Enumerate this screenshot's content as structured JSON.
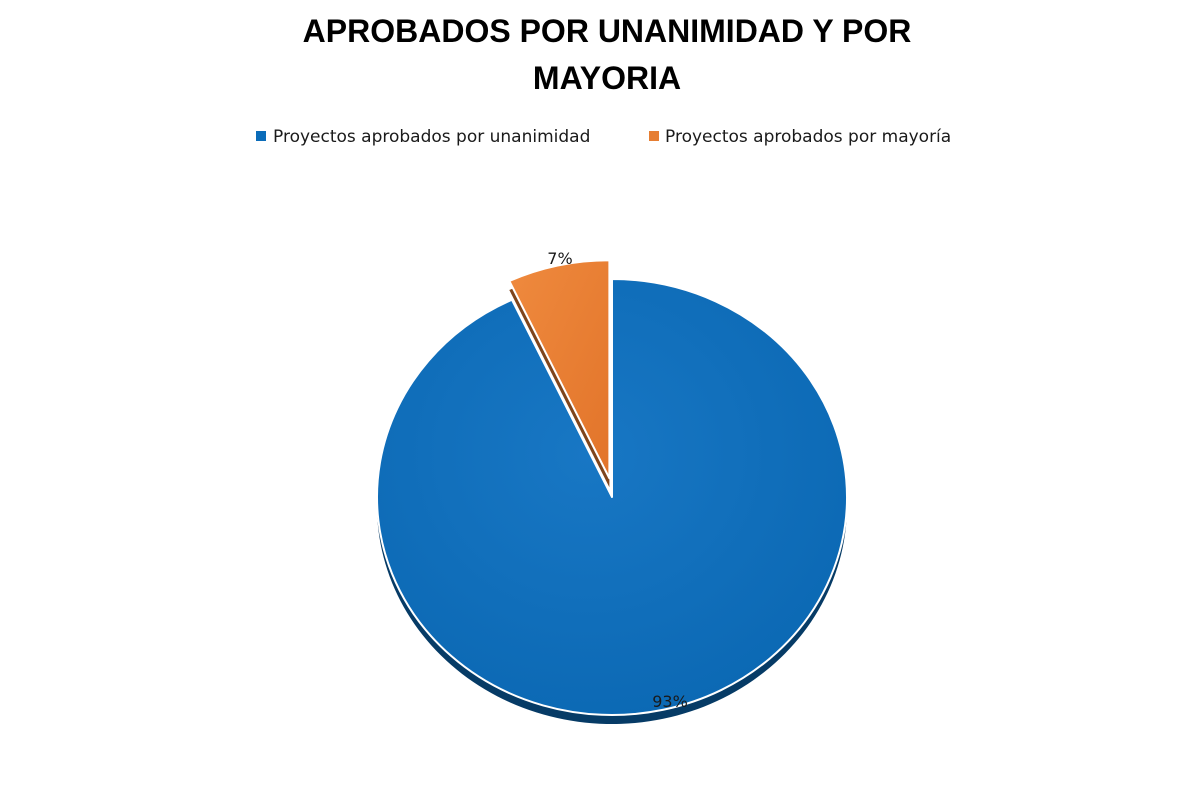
{
  "chart_data": {
    "type": "pie",
    "title_lines": [
      "APROBADOS POR UNANIMIDAD Y POR",
      "MAYORIA"
    ],
    "legend_position": "top",
    "slices": [
      {
        "label": "Proyectos aprobados por unanimidad",
        "value": 93,
        "value_label": "93%",
        "color": "#0b6cb9",
        "exploded": false
      },
      {
        "label": "Proyectos aprobados por mayoría",
        "value": 7,
        "value_label": "7%",
        "color": "#e67e33",
        "exploded": true
      }
    ]
  }
}
